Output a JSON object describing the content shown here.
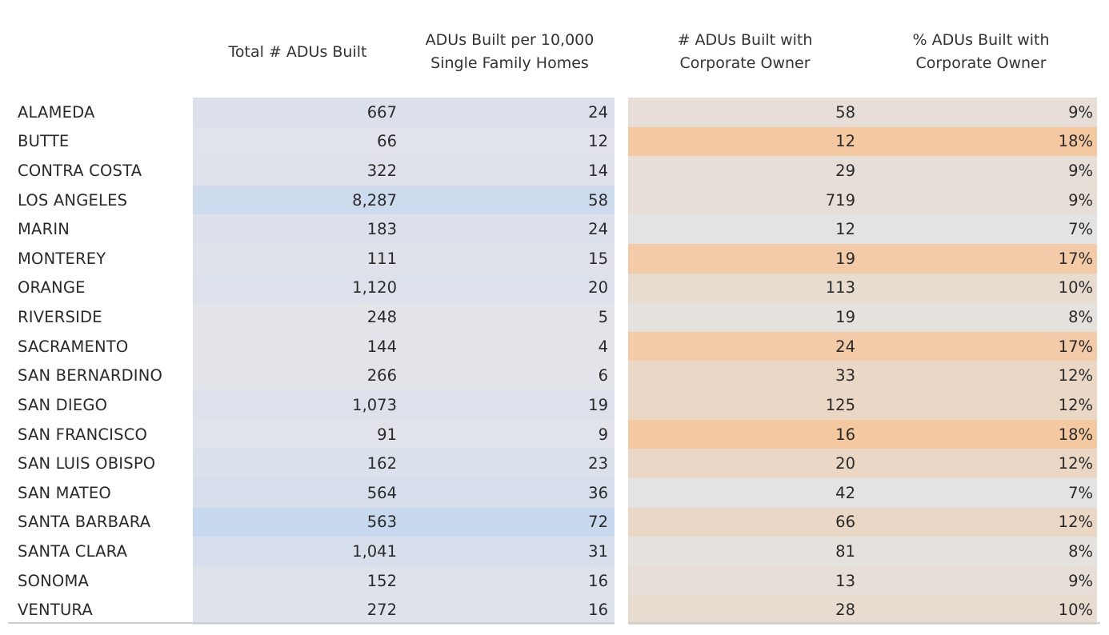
{
  "chart_data": {
    "type": "table",
    "columns": [
      "Total # ADUs Built",
      "ADUs Built per 10,000\nSingle Family Homes",
      "# ADUs Built with\nCorporate Owner",
      "% ADUs Built with\nCorporate Owner"
    ],
    "rows": [
      {
        "county": "ALAMEDA",
        "total": "667",
        "per10k": "24",
        "corp": "58",
        "pct": "9%"
      },
      {
        "county": "BUTTE",
        "total": "66",
        "per10k": "12",
        "corp": "12",
        "pct": "18%"
      },
      {
        "county": "CONTRA COSTA",
        "total": "322",
        "per10k": "14",
        "corp": "29",
        "pct": "9%"
      },
      {
        "county": "LOS ANGELES",
        "total": "8,287",
        "per10k": "58",
        "corp": "719",
        "pct": "9%"
      },
      {
        "county": "MARIN",
        "total": "183",
        "per10k": "24",
        "corp": "12",
        "pct": "7%"
      },
      {
        "county": "MONTEREY",
        "total": "111",
        "per10k": "15",
        "corp": "19",
        "pct": "17%"
      },
      {
        "county": "ORANGE",
        "total": "1,120",
        "per10k": "20",
        "corp": "113",
        "pct": "10%"
      },
      {
        "county": "RIVERSIDE",
        "total": "248",
        "per10k": "5",
        "corp": "19",
        "pct": "8%"
      },
      {
        "county": "SACRAMENTO",
        "total": "144",
        "per10k": "4",
        "corp": "24",
        "pct": "17%"
      },
      {
        "county": "SAN BERNARDINO",
        "total": "266",
        "per10k": "6",
        "corp": "33",
        "pct": "12%"
      },
      {
        "county": "SAN DIEGO",
        "total": "1,073",
        "per10k": "19",
        "corp": "125",
        "pct": "12%"
      },
      {
        "county": "SAN FRANCISCO",
        "total": "91",
        "per10k": "9",
        "corp": "16",
        "pct": "18%"
      },
      {
        "county": "SAN LUIS OBISPO",
        "total": "162",
        "per10k": "23",
        "corp": "20",
        "pct": "12%"
      },
      {
        "county": "SAN MATEO",
        "total": "564",
        "per10k": "36",
        "corp": "42",
        "pct": "7%"
      },
      {
        "county": "SANTA BARBARA",
        "total": "563",
        "per10k": "72",
        "corp": "66",
        "pct": "12%"
      },
      {
        "county": "SANTA CLARA",
        "total": "1,041",
        "per10k": "31",
        "corp": "81",
        "pct": "8%"
      },
      {
        "county": "SONOMA",
        "total": "152",
        "per10k": "16",
        "corp": "13",
        "pct": "9%"
      },
      {
        "county": "VENTURA",
        "total": "272",
        "per10k": "16",
        "corp": "28",
        "pct": "10%"
      }
    ],
    "colors": {
      "blue_low": "#e3e4ea",
      "blue_high": "#c8d8ef",
      "orange_low": "#e4e3e3",
      "orange_high": "#f4c9a2",
      "rule": "#cfcfcf"
    }
  }
}
